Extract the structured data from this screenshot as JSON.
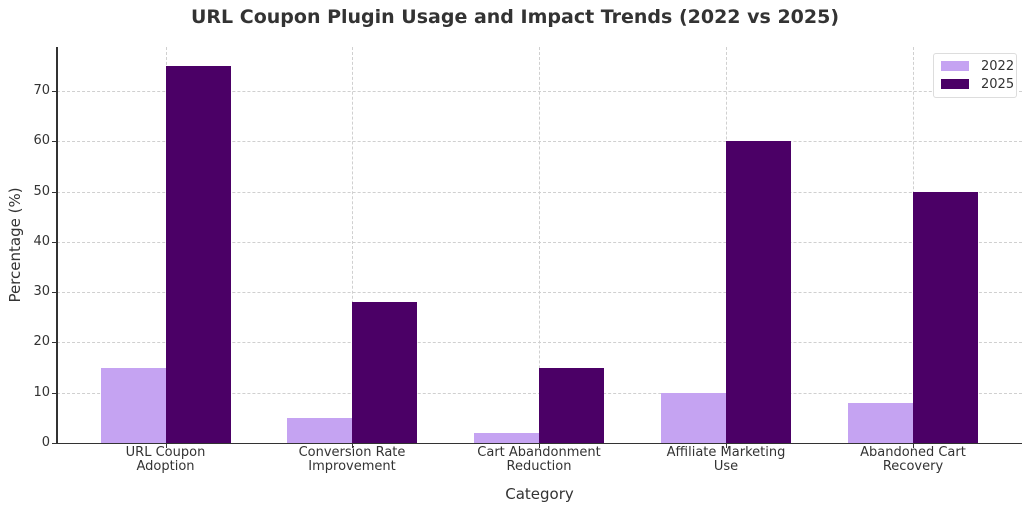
{
  "chart_data": {
    "type": "bar",
    "title": "URL Coupon Plugin Usage and Impact Trends (2022 vs 2025)",
    "xlabel": "Category",
    "ylabel": "Percentage (%)",
    "categories": [
      "URL Coupon\nAdoption",
      "Conversion Rate\nImprovement",
      "Cart Abandonment\nReduction",
      "Affiliate Marketing\nUse",
      "Abandoned Cart\nRecovery"
    ],
    "series": [
      {
        "name": "2022",
        "color": "#c5a3f2",
        "values": [
          15,
          5,
          2,
          10,
          8
        ]
      },
      {
        "name": "2025",
        "color": "#4b0066",
        "values": [
          75,
          28,
          15,
          60,
          50
        ]
      }
    ],
    "ylim": [
      0,
      78.75
    ],
    "yticks": [
      0,
      10,
      20,
      30,
      40,
      50,
      60,
      70
    ],
    "grid": true,
    "legend_position": "upper right"
  }
}
